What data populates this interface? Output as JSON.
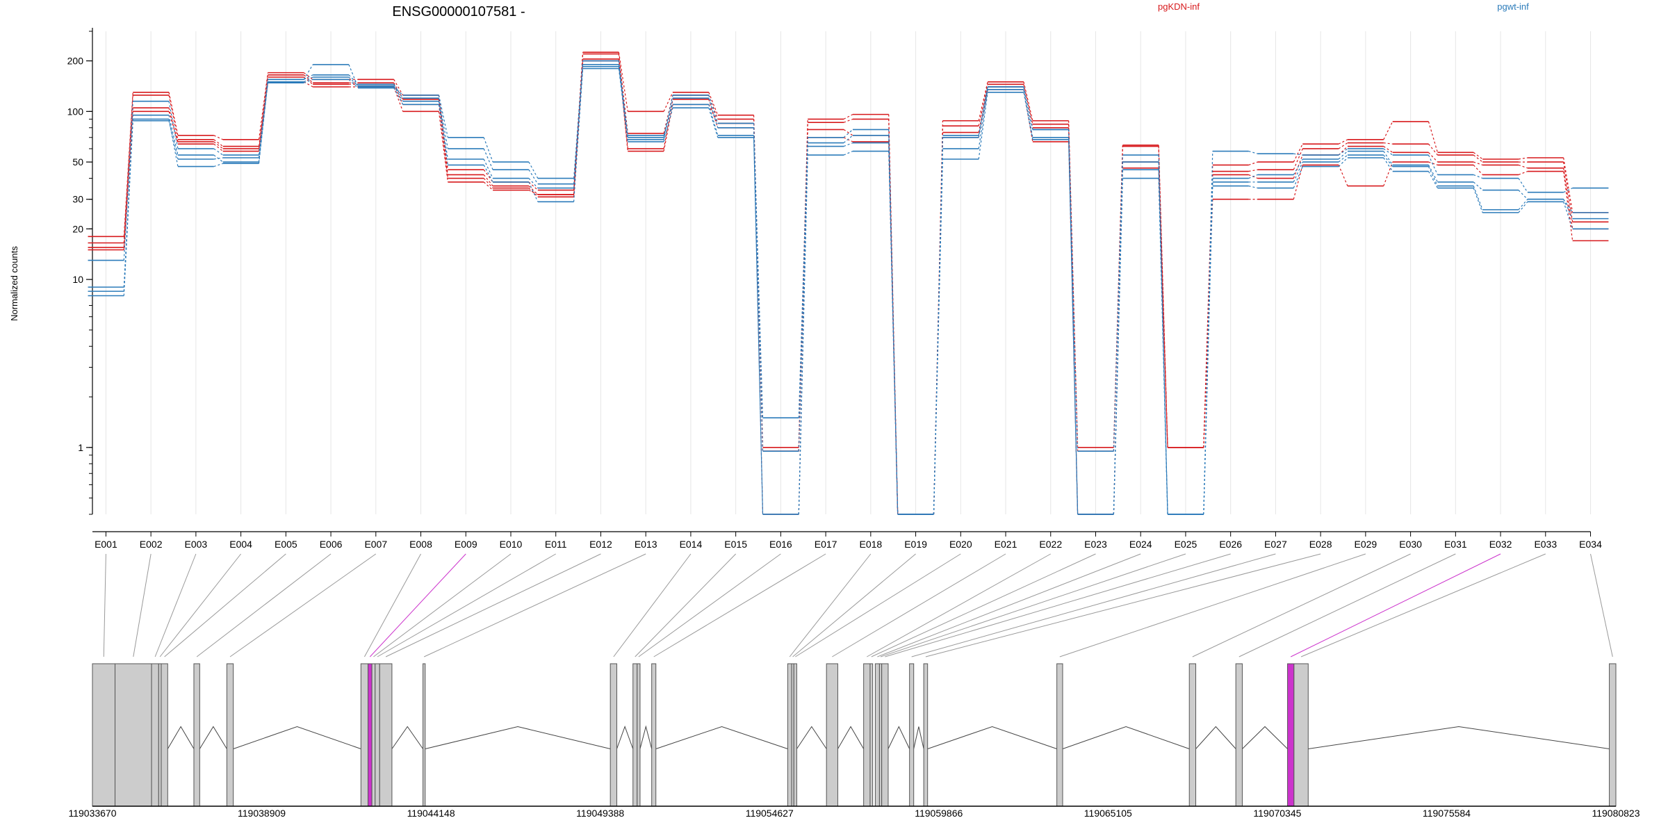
{
  "title": "ENSG00000107581 -",
  "colors": {
    "pgKDN-inf": "#d7191c",
    "pgwt-inf": "#2b7bba",
    "highlight": "#cc33cc",
    "exon_fill": "#cccccc",
    "axis": "#000000",
    "grid": "#e6e6e6"
  },
  "chart_data": [
    {
      "type": "line",
      "style": "step",
      "title": "ENSG00000107581 -",
      "xlabel": "",
      "ylabel": "Normalized counts",
      "yscale": "log",
      "ylim": [
        0.4,
        300
      ],
      "yticks": [
        1,
        10,
        20,
        30,
        50,
        100,
        200
      ],
      "grid": true,
      "legend_position": "top-right",
      "categories": [
        "E001",
        "E002",
        "E003",
        "E004",
        "E005",
        "E006",
        "E007",
        "E008",
        "E009",
        "E010",
        "E011",
        "E012",
        "E013",
        "E014",
        "E015",
        "E016",
        "E017",
        "E018",
        "E019",
        "E020",
        "E021",
        "E022",
        "E023",
        "E024",
        "E025",
        "E026",
        "E027",
        "E028",
        "E029",
        "E030",
        "E031",
        "E032",
        "E033",
        "E034"
      ],
      "series": [
        {
          "name": "pgKDN-inf",
          "group": "pgKDN-inf",
          "values": [
            18,
            130,
            72,
            68,
            170,
            155,
            155,
            125,
            45,
            38,
            34,
            225,
            100,
            130,
            95,
            1.0,
            90,
            96,
            0.4,
            88,
            150,
            88,
            1.0,
            63,
            1.0,
            48,
            50,
            64,
            68,
            87,
            57,
            52,
            53,
            25
          ]
        },
        {
          "name": "",
          "group": "pgKDN-inf",
          "values": [
            16.5,
            125,
            68,
            62,
            165,
            148,
            148,
            118,
            42,
            36,
            32,
            220,
            74,
            125,
            90,
            0.95,
            86,
            90,
            0.4,
            82,
            145,
            84,
            0.95,
            62,
            1.0,
            44,
            45,
            60,
            65,
            64,
            55,
            50,
            50,
            22
          ]
        },
        {
          "name": "",
          "group": "pgKDN-inf",
          "values": [
            15.5,
            105,
            64,
            58,
            160,
            145,
            145,
            110,
            40,
            35,
            31,
            205,
            60,
            118,
            80,
            0.95,
            78,
            72,
            0.4,
            75,
            140,
            80,
            0.4,
            50,
            1.0,
            42,
            40,
            55,
            62,
            57,
            50,
            48,
            46,
            20
          ]
        },
        {
          "name": "",
          "group": "pgKDN-inf",
          "values": [
            15,
            100,
            66,
            60,
            150,
            140,
            140,
            100,
            38,
            34,
            32,
            200,
            58,
            110,
            85,
            0.4,
            70,
            66,
            0.4,
            70,
            135,
            66,
            0.4,
            46,
            1.0,
            30,
            30,
            48,
            36,
            50,
            48,
            42,
            44,
            17
          ]
        },
        {
          "name": "pgwt-inf",
          "group": "pgwt-inf",
          "values": [
            13,
            115,
            60,
            55,
            155,
            190,
            140,
            125,
            70,
            50,
            40,
            200,
            70,
            125,
            85,
            1.5,
            70,
            78,
            0.4,
            72,
            140,
            78,
            0.95,
            55,
            0.4,
            58,
            56,
            55,
            60,
            55,
            42,
            40,
            33,
            35
          ]
        },
        {
          "name": "",
          "group": "pgwt-inf",
          "values": [
            9,
            95,
            55,
            50,
            155,
            165,
            145,
            120,
            60,
            45,
            37,
            190,
            68,
            120,
            80,
            0.95,
            65,
            72,
            0.4,
            70,
            140,
            78,
            0.4,
            50,
            0.4,
            40,
            42,
            52,
            58,
            48,
            38,
            34,
            30,
            25
          ]
        },
        {
          "name": "",
          "group": "pgwt-inf",
          "values": [
            8,
            90,
            47,
            49,
            150,
            160,
            142,
            115,
            52,
            40,
            35,
            185,
            72,
            110,
            72,
            0.4,
            62,
            65,
            0.4,
            60,
            135,
            70,
            0.4,
            45,
            0.4,
            38,
            38,
            50,
            55,
            47,
            36,
            26,
            30,
            23
          ]
        },
        {
          "name": "",
          "group": "pgwt-inf",
          "values": [
            8.5,
            88,
            52,
            53,
            148,
            155,
            138,
            110,
            48,
            38,
            29,
            180,
            66,
            105,
            70,
            0.4,
            55,
            58,
            0.4,
            52,
            130,
            68,
            0.4,
            40,
            0.4,
            36,
            35,
            47,
            53,
            44,
            35,
            25,
            29,
            20
          ]
        }
      ]
    },
    {
      "type": "gene-model",
      "xlabel": "",
      "xticks": [
        119033670,
        119038909,
        119044148,
        119049388,
        119054627,
        119059866,
        119065105,
        119070345,
        119075584,
        119080823
      ],
      "exons": [
        {
          "label": "E001",
          "start": 119033670,
          "end": 119034370
        },
        {
          "label": "E002",
          "start": 119034370,
          "end": 119035500
        },
        {
          "label": "E003",
          "start": 119035500,
          "end": 119035720
        },
        {
          "label": "E004",
          "start": 119035720,
          "end": 119035800
        },
        {
          "label": "E005",
          "start": 119035800,
          "end": 119036000
        },
        {
          "label": "E006",
          "start": 119036810,
          "end": 119036990
        },
        {
          "label": "E007",
          "start": 119037830,
          "end": 119038030
        },
        {
          "label": "E008",
          "start": 119041980,
          "end": 119042200
        },
        {
          "label": "E009",
          "start": 119042200,
          "end": 119042320,
          "highlight": true
        },
        {
          "label": "E010",
          "start": 119042320,
          "end": 119042420
        },
        {
          "label": "E011",
          "start": 119042420,
          "end": 119042560
        },
        {
          "label": "E012",
          "start": 119042560,
          "end": 119042940
        },
        {
          "label": "E013",
          "start": 119043900,
          "end": 119043970
        },
        {
          "label": "E014",
          "start": 119049700,
          "end": 119049900
        },
        {
          "label": "E015",
          "start": 119050400,
          "end": 119050530
        },
        {
          "label": "E016",
          "start": 119050530,
          "end": 119050620
        },
        {
          "label": "E017",
          "start": 119050980,
          "end": 119051110
        },
        {
          "label": "E018",
          "start": 119055190,
          "end": 119055310
        },
        {
          "label": "E019",
          "start": 119055310,
          "end": 119055380
        },
        {
          "label": "E020",
          "start": 119055380,
          "end": 119055470
        },
        {
          "label": "E021",
          "start": 119056390,
          "end": 119056740
        },
        {
          "label": "E022",
          "start": 119057540,
          "end": 119057740
        },
        {
          "label": "E023",
          "start": 119057740,
          "end": 119057820
        },
        {
          "label": "E024",
          "start": 119057900,
          "end": 119058030
        },
        {
          "label": "E025",
          "start": 119058030,
          "end": 119058100
        },
        {
          "label": "E026",
          "start": 119058100,
          "end": 119058300
        },
        {
          "label": "E027",
          "start": 119058960,
          "end": 119059090
        },
        {
          "label": "E028",
          "start": 119059400,
          "end": 119059520
        },
        {
          "label": "E029",
          "start": 119063520,
          "end": 119063700
        },
        {
          "label": "E030",
          "start": 119067620,
          "end": 119067820
        },
        {
          "label": "E031",
          "start": 119069060,
          "end": 119069260
        },
        {
          "label": "E032",
          "start": 119070660,
          "end": 119070860,
          "highlight": true
        },
        {
          "label": "E033",
          "start": 119070860,
          "end": 119071300
        },
        {
          "label": "E034",
          "start": 119080620,
          "end": 119080823
        }
      ]
    }
  ]
}
